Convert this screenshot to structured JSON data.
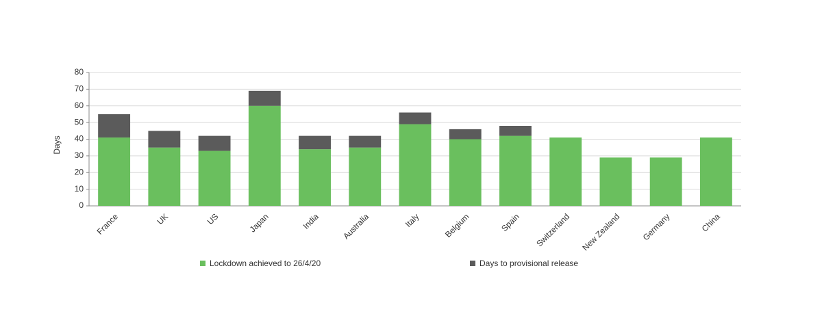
{
  "chart_data": {
    "type": "stacked-bar",
    "y_label": "Days",
    "categories": [
      "France",
      "UK",
      "US",
      "Japan",
      "India",
      "Australia",
      "Italy",
      "Belgium",
      "Spain",
      "Switzerland",
      "New Zealand",
      "Germany",
      "China"
    ],
    "series": [
      {
        "name": "Lockdown achieved to 26/4/20",
        "color": "#6abf5e",
        "values": [
          41,
          35,
          33,
          60,
          34,
          35,
          49,
          40,
          42,
          41,
          29,
          29,
          41
        ]
      },
      {
        "name": "Days to provisional release",
        "color": "#5b5b5b",
        "values": [
          14,
          10,
          9,
          9,
          8,
          7,
          7,
          6,
          6,
          0,
          0,
          0,
          0
        ]
      }
    ],
    "ylim": [
      0,
      80
    ],
    "yticks": [
      0,
      10,
      20,
      30,
      40,
      50,
      60,
      70,
      80
    ],
    "grid": true
  }
}
